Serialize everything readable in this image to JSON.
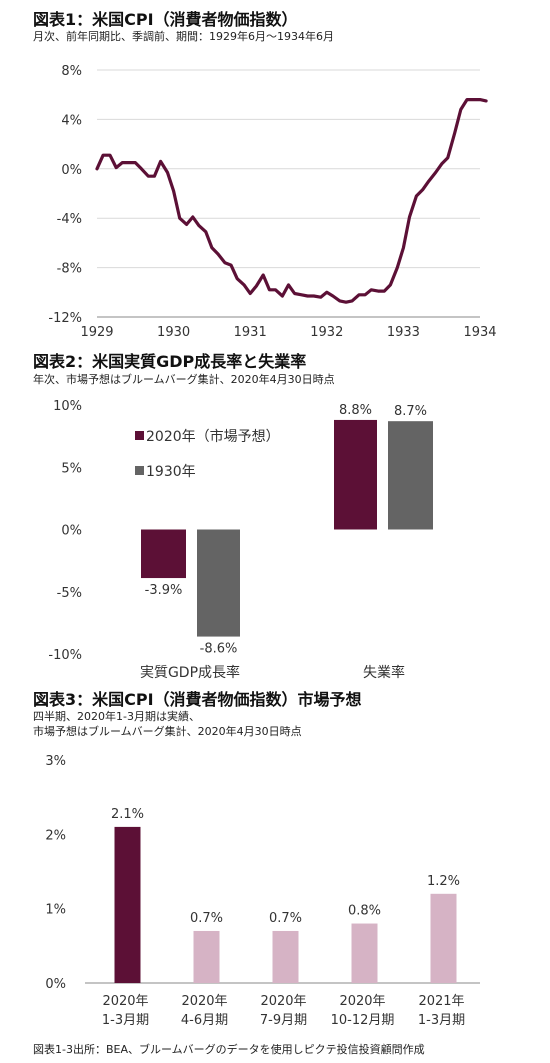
{
  "chart_data": [
    {
      "type": "line",
      "title": "図表1：米国CPI（消費者物価指数）",
      "subtitle": "月次、前年同期比、季調前、期間：1929年6月～1934年6月",
      "x_ticks": [
        "1929",
        "1930",
        "1931",
        "1932",
        "1933",
        "1934"
      ],
      "y_ticks": [
        "8%",
        "4%",
        "0%",
        "-4%",
        "-8%",
        "-12%"
      ],
      "ylim": [
        -12,
        8
      ],
      "xlim": [
        1929.0,
        1934.0
      ],
      "color": "#5c1036",
      "series": [
        {
          "values": [
            [
              1929.0,
              0.0
            ],
            [
              1929.08,
              1.1
            ],
            [
              1929.17,
              1.1
            ],
            [
              1929.25,
              0.1
            ],
            [
              1929.33,
              0.5
            ],
            [
              1929.42,
              0.5
            ],
            [
              1929.5,
              0.5
            ],
            [
              1929.58,
              0.0
            ],
            [
              1929.67,
              -0.6
            ],
            [
              1929.75,
              -0.6
            ],
            [
              1929.83,
              0.6
            ],
            [
              1929.92,
              -0.3
            ],
            [
              1930.0,
              -1.8
            ],
            [
              1930.08,
              -4.0
            ],
            [
              1930.17,
              -4.5
            ],
            [
              1930.25,
              -3.9
            ],
            [
              1930.33,
              -4.6
            ],
            [
              1930.42,
              -5.1
            ],
            [
              1930.5,
              -6.4
            ],
            [
              1930.58,
              -6.9
            ],
            [
              1930.67,
              -7.6
            ],
            [
              1930.75,
              -7.8
            ],
            [
              1930.83,
              -8.9
            ],
            [
              1930.92,
              -9.4
            ],
            [
              1931.0,
              -10.1
            ],
            [
              1931.08,
              -9.5
            ],
            [
              1931.17,
              -8.6
            ],
            [
              1931.25,
              -9.8
            ],
            [
              1931.33,
              -9.8
            ],
            [
              1931.42,
              -10.3
            ],
            [
              1931.5,
              -9.4
            ],
            [
              1931.58,
              -10.1
            ],
            [
              1931.67,
              -10.2
            ],
            [
              1931.75,
              -10.3
            ],
            [
              1931.83,
              -10.3
            ],
            [
              1931.92,
              -10.4
            ],
            [
              1932.0,
              -10.0
            ],
            [
              1932.08,
              -10.3
            ],
            [
              1932.17,
              -10.7
            ],
            [
              1932.25,
              -10.8
            ],
            [
              1932.33,
              -10.7
            ],
            [
              1932.42,
              -10.2
            ],
            [
              1932.5,
              -10.2
            ],
            [
              1932.58,
              -9.8
            ],
            [
              1932.67,
              -9.9
            ],
            [
              1932.75,
              -9.9
            ],
            [
              1932.83,
              -9.4
            ],
            [
              1932.92,
              -8.0
            ],
            [
              1933.0,
              -6.4
            ],
            [
              1933.08,
              -3.9
            ],
            [
              1933.17,
              -2.2
            ],
            [
              1933.25,
              -1.7
            ],
            [
              1933.33,
              -1.0
            ],
            [
              1933.42,
              -0.3
            ],
            [
              1933.5,
              0.4
            ],
            [
              1933.58,
              0.9
            ],
            [
              1933.67,
              2.9
            ],
            [
              1933.75,
              4.8
            ],
            [
              1933.83,
              5.6
            ],
            [
              1933.92,
              5.6
            ],
            [
              1934.0,
              5.6
            ],
            [
              1934.08,
              5.5
            ]
          ]
        }
      ]
    },
    {
      "type": "bar",
      "title": "図表2：米国実質GDP成長率と失業率",
      "subtitle": "年次、市場予想はブルームバーグ集計、2020年4月30日時点",
      "categories": [
        "実質GDP成長率",
        "失業率"
      ],
      "y_ticks": [
        "10%",
        "5%",
        "0%",
        "-5%",
        "-10%"
      ],
      "ylim": [
        -10,
        10
      ],
      "series": [
        {
          "name": "2020年（市場予想）",
          "values": [
            -3.9,
            8.8
          ],
          "labels": [
            "-3.9%",
            "8.8%"
          ],
          "color": "#5c1036"
        },
        {
          "name": "1930年",
          "values": [
            -8.6,
            8.7
          ],
          "labels": [
            "-8.6%",
            "8.7%"
          ],
          "color": "#646464"
        }
      ],
      "legend": "top-left"
    },
    {
      "type": "bar",
      "title": "図表3：米国CPI（消費者物価指数）市場予想",
      "subtitle_lines": [
        "四半期、2020年1-3月期は実績、",
        "市場予想はブルームバーグ集計、2020年4月30日時点"
      ],
      "categories": [
        [
          "2020年",
          "1-3月期"
        ],
        [
          "2020年",
          "4-6月期"
        ],
        [
          "2020年",
          "7-9月期"
        ],
        [
          "2020年",
          "10-12月期"
        ],
        [
          "2021年",
          "1-3月期"
        ]
      ],
      "values": [
        2.1,
        0.7,
        0.7,
        0.8,
        1.2
      ],
      "labels": [
        "2.1%",
        "0.7%",
        "0.7%",
        "0.8%",
        "1.2%"
      ],
      "y_ticks": [
        "3%",
        "2%",
        "1%",
        "0%"
      ],
      "ylim": [
        0,
        3
      ],
      "colors": [
        "#5c1036",
        "#d6b3c5",
        "#d6b3c5",
        "#d6b3c5",
        "#d6b3c5"
      ]
    }
  ],
  "footer": "図表1-3出所：BEA、ブルームバーグのデータを使用しピクテ投信投資顧問作成"
}
